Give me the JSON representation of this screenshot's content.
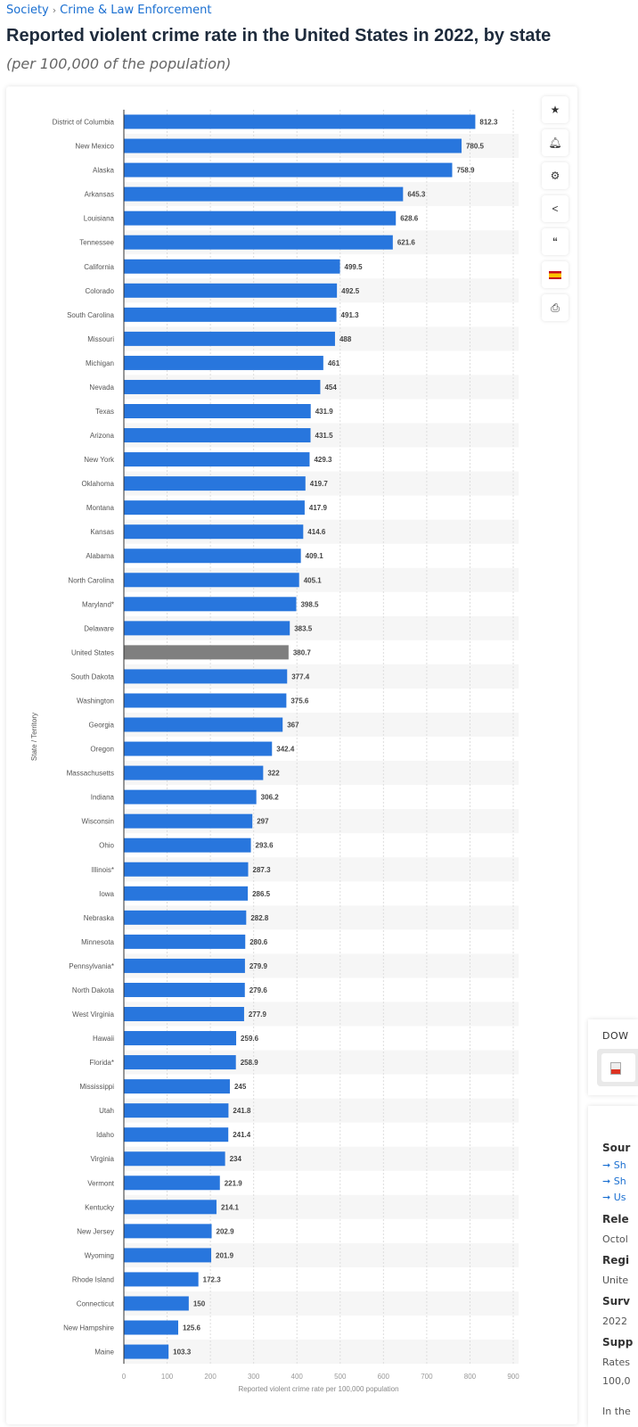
{
  "breadcrumb": [
    "Society",
    "Crime & Law Enforcement"
  ],
  "title": "Reported violent crime rate in the United States in 2022, by state",
  "subtitle": "(per 100,000 of the population)",
  "toolbar": {
    "icons": [
      "star-icon",
      "bell-icon",
      "gear-icon",
      "share-icon",
      "quote-icon",
      "spain-flag-icon",
      "print-icon"
    ]
  },
  "download_panel": {
    "heading": "DOW"
  },
  "info_panel": {
    "source_heading": "Sour",
    "source_links": [
      "Sh",
      "Sh",
      "Us"
    ],
    "release_heading": "Rele",
    "release_value": "Octol",
    "region_heading": "Regi",
    "region_value": "Unite",
    "survey_heading": "Surv",
    "survey_value": "2022",
    "supp_heading": "Supp",
    "supp_line1": "Rates",
    "supp_line2": "100,0",
    "footer": "In the"
  },
  "colors": {
    "bar": "#2876dd",
    "highlight": "#7f7f7f",
    "stripe": "#f6f6f6"
  },
  "chart_data": {
    "type": "bar",
    "orientation": "horizontal",
    "xlabel": "Reported violent crime rate per 100,000 population",
    "ylabel": "State / Territory",
    "xlim": [
      0,
      900
    ],
    "xticks": [
      0,
      100,
      200,
      300,
      400,
      500,
      600,
      700,
      800,
      900
    ],
    "grid": true,
    "highlighted_category": "United States",
    "categories": [
      "District of Columbia",
      "New Mexico",
      "Alaska",
      "Arkansas",
      "Louisiana",
      "Tennessee",
      "California",
      "Colorado",
      "South Carolina",
      "Missouri",
      "Michigan",
      "Nevada",
      "Texas",
      "Arizona",
      "New York",
      "Oklahoma",
      "Montana",
      "Kansas",
      "Alabama",
      "North Carolina",
      "Maryland*",
      "Delaware",
      "United States",
      "South Dakota",
      "Washington",
      "Georgia",
      "Oregon",
      "Massachusetts",
      "Indiana",
      "Wisconsin",
      "Ohio",
      "Illinois*",
      "Iowa",
      "Nebraska",
      "Minnesota",
      "Pennsylvania*",
      "North Dakota",
      "West Virginia",
      "Hawaii",
      "Florida*",
      "Mississippi",
      "Utah",
      "Idaho",
      "Virginia",
      "Vermont",
      "Kentucky",
      "New Jersey",
      "Wyoming",
      "Rhode Island",
      "Connecticut",
      "New Hampshire",
      "Maine"
    ],
    "values": [
      812.3,
      780.5,
      758.9,
      645.3,
      628.6,
      621.6,
      499.5,
      492.5,
      491.3,
      488,
      461,
      454,
      431.9,
      431.5,
      429.3,
      419.7,
      417.9,
      414.6,
      409.1,
      405.1,
      398.5,
      383.5,
      380.7,
      377.4,
      375.6,
      367,
      342.4,
      322,
      306.2,
      297,
      293.6,
      287.3,
      286.5,
      282.8,
      280.6,
      279.9,
      279.6,
      277.9,
      259.6,
      258.9,
      245,
      241.8,
      241.4,
      234,
      221.9,
      214.1,
      202.9,
      201.9,
      172.3,
      150,
      125.6,
      103.3
    ]
  }
}
